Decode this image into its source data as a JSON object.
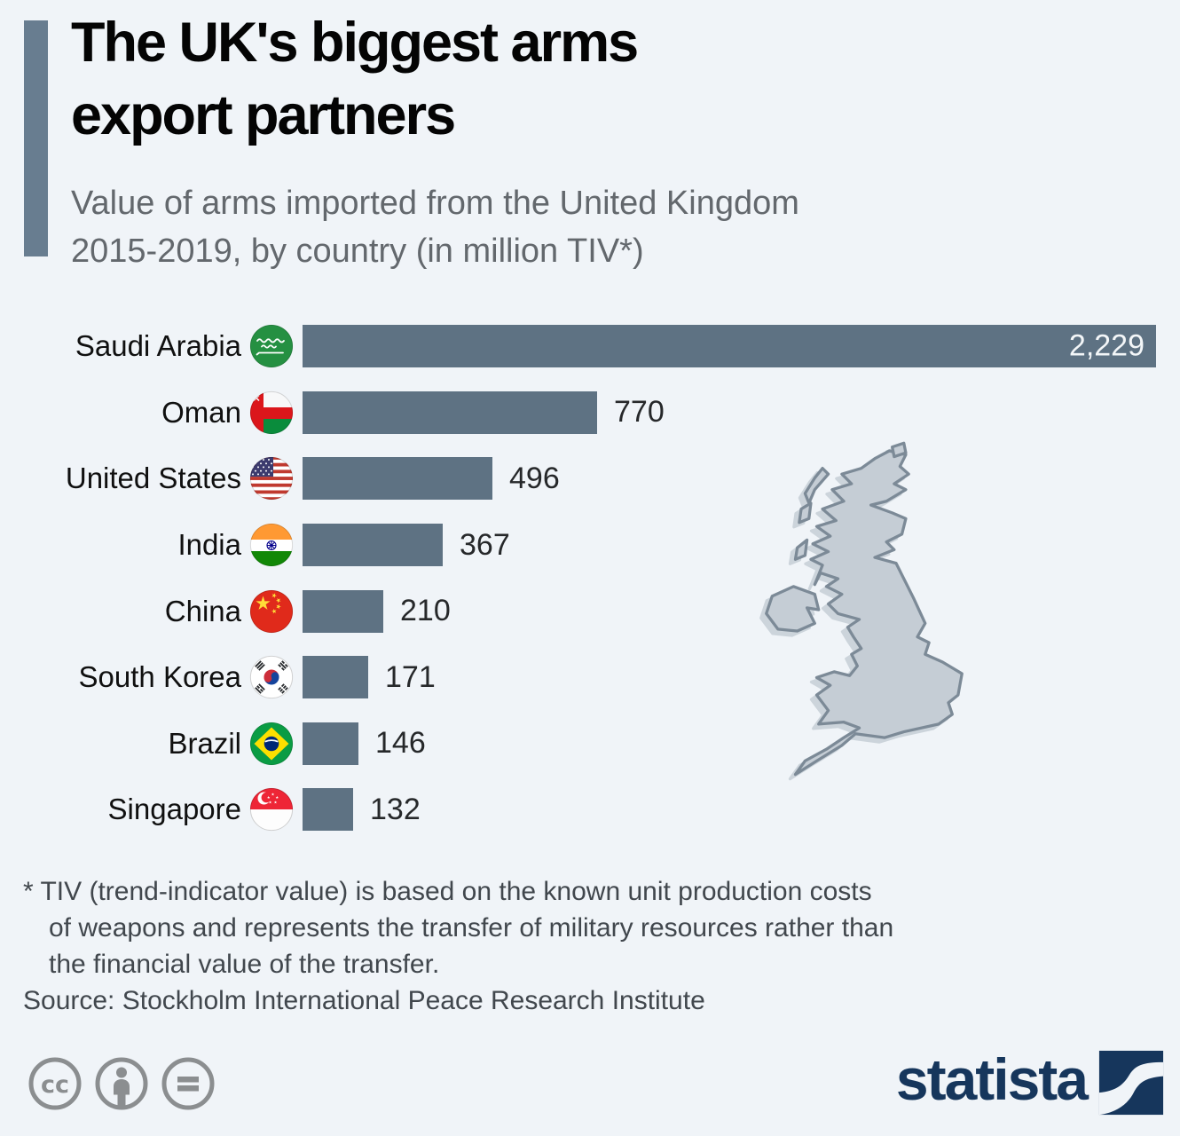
{
  "header": {
    "title": "The UK's biggest arms\nexport partners",
    "subtitle": "Value of arms imported from the United Kingdom\n2015-2019, by country (in million TIV*)"
  },
  "chart_data": {
    "type": "bar",
    "orientation": "horizontal",
    "title": "The UK's biggest arms export partners",
    "xlabel": "million TIV",
    "xlim": [
      0,
      2300
    ],
    "grid": false,
    "legend": "none",
    "categories": [
      "Saudi Arabia",
      "Oman",
      "United States",
      "India",
      "China",
      "South Korea",
      "Brazil",
      "Singapore"
    ],
    "values": [
      2229,
      770,
      496,
      367,
      210,
      171,
      146,
      132
    ],
    "values_display": [
      "2,229",
      "770",
      "496",
      "367",
      "210",
      "171",
      "146",
      "132"
    ],
    "flag_icons": [
      "saudi-arabia",
      "oman",
      "united-states",
      "india",
      "china",
      "south-korea",
      "brazil",
      "singapore"
    ],
    "bar_color": "#5e7283"
  },
  "footnote": {
    "line1": "* TIV (trend-indicator value) is based on the known unit production costs",
    "line2": "of weapons and represents the transfer of military resources rather than",
    "line3": "the financial value of the transfer.",
    "source": "Source: Stockholm International Peace Research Institute"
  },
  "footer": {
    "brand": "statista",
    "license_icons": [
      "cc-icon",
      "by-icon",
      "nd-icon"
    ]
  },
  "colors": {
    "background": "#f0f4f8",
    "bar": "#5e7283",
    "accent_bar": "#687d90",
    "brand_navy": "#16365c",
    "map_fill": "#c5cdd5",
    "map_stroke": "#7c8a97"
  }
}
